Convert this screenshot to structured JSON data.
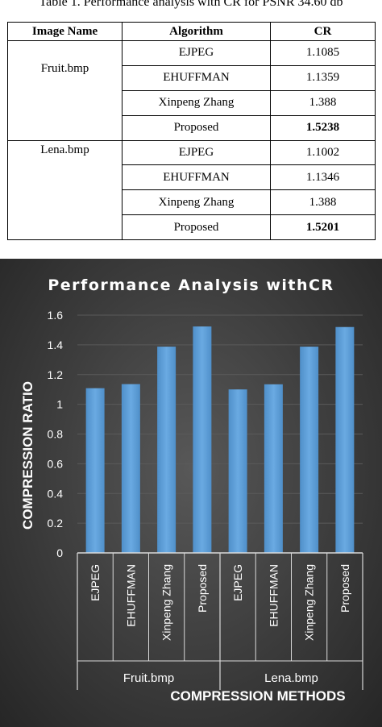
{
  "table": {
    "caption": "Table 1. Performance analysis with CR for PSNR 34.60 db",
    "headers": [
      "Image Name",
      "Algorithm",
      "CR"
    ],
    "groups": [
      {
        "image": "Fruit.bmp",
        "rows": [
          {
            "algorithm": "EJPEG",
            "cr": "1.1085"
          },
          {
            "algorithm": "EHUFFMAN",
            "cr": "1.1359"
          },
          {
            "algorithm": "Xinpeng Zhang",
            "cr": "1.388"
          },
          {
            "algorithm": "Proposed",
            "cr": "1.5238"
          }
        ]
      },
      {
        "image": "Lena.bmp",
        "rows": [
          {
            "algorithm": "EJPEG",
            "cr": "1.1002"
          },
          {
            "algorithm": "EHUFFMAN",
            "cr": "1.1346"
          },
          {
            "algorithm": "Xinpeng Zhang",
            "cr": "1.388"
          },
          {
            "algorithm": "Proposed",
            "cr": "1.5201"
          }
        ]
      }
    ]
  },
  "chart_data": {
    "type": "bar",
    "title": "Performance Analysis withCR",
    "xlabel": "COMPRESSION METHODS",
    "ylabel": "COMPRESSION RATIO",
    "ylim": [
      0,
      1.6
    ],
    "yticks": [
      "0",
      "0.2",
      "0.4",
      "0.6",
      "0.8",
      "1",
      "1.2",
      "1.4",
      "1.6"
    ],
    "groups": [
      {
        "name": "Fruit.bmp",
        "categories": [
          "EJPEG",
          "EHUFFMAN",
          "Xinpeng Zhang",
          "Proposed"
        ],
        "values": [
          1.1085,
          1.1359,
          1.388,
          1.5238
        ]
      },
      {
        "name": "Lena.bmp",
        "categories": [
          "EJPEG",
          "EHUFFMAN",
          "Xinpeng Zhang",
          "Proposed"
        ],
        "values": [
          1.1002,
          1.1346,
          1.388,
          1.5201
        ]
      }
    ],
    "grid": true,
    "legend": "none",
    "colors": {
      "bar": "#5b9bd5",
      "bar_light": "#6aaae2",
      "text": "#ffffff",
      "axis": "#d9d9d9",
      "grid": "#5a5a5a"
    }
  }
}
